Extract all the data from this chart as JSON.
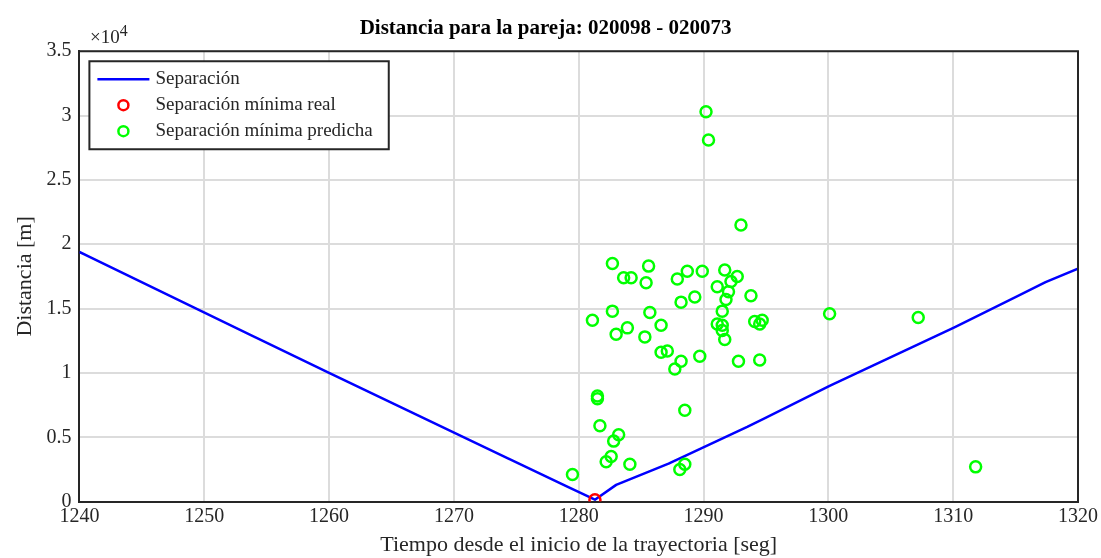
{
  "chart_data": {
    "type": "line",
    "title": "Distancia para la pareja: 020098 - 020073",
    "xlabel": "Tiempo desde el inicio de la trayectoria [seg]",
    "ylabel": "Distancia [m]",
    "annotations": [
      "×10$^{4}$"
    ],
    "xlim": [
      1240,
      1320
    ],
    "xticks": [
      1240,
      1250,
      1260,
      1270,
      1280,
      1290,
      1300,
      1310,
      1320
    ],
    "ylim": [
      0,
      3.5
    ],
    "yticks": [
      0,
      0.5,
      1,
      1.5,
      2,
      2.5,
      3,
      3.5
    ],
    "grid": true,
    "legend": "top left",
    "line_style": "solid",
    "series": [
      {
        "name": "Separación",
        "type": "line",
        "marker": "none",
        "color": "#0000ff",
        "x": [
          1240,
          1260,
          1279,
          1281.3,
          1283,
          1287.2,
          1293.5,
          1300.1,
          1310.1,
          1317.4,
          1320
        ],
        "values": [
          1.94,
          1.0,
          0.12,
          0.015,
          0.13,
          0.295,
          0.58,
          0.899,
          1.354,
          1.705,
          1.81
        ]
      },
      {
        "name": "Separación mínima real",
        "type": "scatter",
        "marker": "circle",
        "color": "#ff0000",
        "x": [
          1281.3
        ],
        "values": [
          0.015
        ]
      },
      {
        "name": "Separación mínima predicha",
        "type": "scatter",
        "marker": "circle",
        "color": "#00ff00",
        "x": [
          1290.2,
          1290.4,
          1293.0,
          1282.7,
          1285.6,
          1283.6,
          1284.2,
          1285.4,
          1287.9,
          1288.7,
          1289.9,
          1291.7,
          1292.7,
          1292.2,
          1291.1,
          1292.0,
          1291.8,
          1288.2,
          1289.3,
          1293.8,
          1282.7,
          1285.7,
          1281.1,
          1291.5,
          1283.0,
          1283.9,
          1285.3,
          1286.6,
          1291.1,
          1291.5,
          1291.5,
          1291.7,
          1286.6,
          1287.1,
          1287.7,
          1288.2,
          1289.7,
          1292.8,
          1294.1,
          1294.5,
          1294.7,
          1294.5,
          1281.5,
          1281.5,
          1281.7,
          1288.5,
          1283.2,
          1282.8,
          1282.6,
          1282.2,
          1284.1,
          1288.5,
          1288.1,
          1279.5,
          1300.1,
          1307.2,
          1311.8
        ],
        "values": [
          3.03,
          2.81,
          2.15,
          1.85,
          1.83,
          1.74,
          1.74,
          1.7,
          1.73,
          1.79,
          1.79,
          1.8,
          1.75,
          1.71,
          1.67,
          1.63,
          1.57,
          1.55,
          1.59,
          1.6,
          1.48,
          1.47,
          1.41,
          1.48,
          1.3,
          1.35,
          1.28,
          1.37,
          1.38,
          1.37,
          1.33,
          1.26,
          1.16,
          1.17,
          1.03,
          1.09,
          1.13,
          1.09,
          1.4,
          1.38,
          1.41,
          1.1,
          0.82,
          0.8,
          0.59,
          0.71,
          0.52,
          0.47,
          0.35,
          0.31,
          0.29,
          0.29,
          0.25,
          0.21,
          1.46,
          1.43,
          0.27
        ]
      }
    ]
  }
}
